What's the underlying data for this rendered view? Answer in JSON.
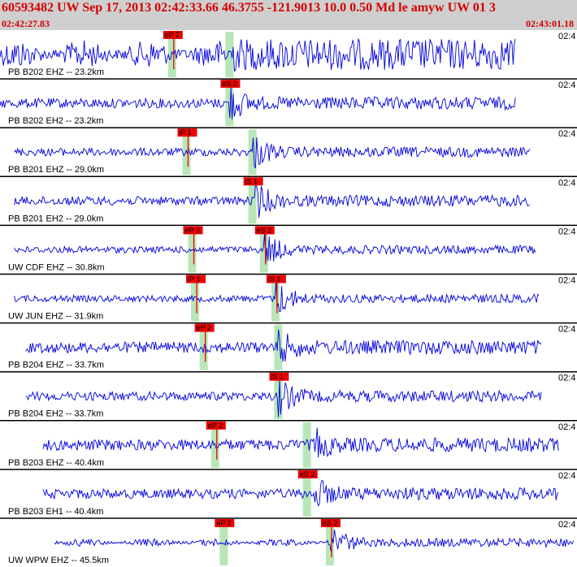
{
  "header": {
    "title": "60593482 UW Sep 17, 2013 02:42:33.66    46.3755 -121.9013 10.0 0.50 Md le amyw UW 01    3",
    "start_time": "02:42:27.83",
    "end_time": "02:43:01.18",
    "text_color": "#d40000",
    "background": "#cfcfcf"
  },
  "colors": {
    "trace": "#0000dd",
    "pick_flag": "#ee0000",
    "pick_window": "#b8e6b8",
    "separator": "#000000"
  },
  "tick_label": "02:4",
  "traces": [
    {
      "label": "PB B202 EHZ -- 23.2km",
      "start": 0.0,
      "end": 0.9,
      "amp": 0.55,
      "onset": 0.4,
      "shape": "pre",
      "picks": [
        {
          "text": "eP 2",
          "pos": 0.3,
          "window": true,
          "line": true
        },
        {
          "text": "",
          "pos": 0.4,
          "window": true,
          "line": false
        }
      ]
    },
    {
      "label": "PB B202 EH2 -- 23.2km",
      "start": 0.0,
      "end": 0.9,
      "amp": 0.22,
      "onset": 0.4,
      "shape": "burst",
      "picks": [
        {
          "text": "eS 2",
          "pos": 0.4,
          "window": true,
          "line": false
        }
      ]
    },
    {
      "label": "PB B201 EHZ -- 29.0km",
      "start": 0.025,
      "end": 0.925,
      "amp": 0.18,
      "onset": 0.44,
      "shape": "burst",
      "picks": [
        {
          "text": "iP 1",
          "pos": 0.325,
          "window": true,
          "line": true
        },
        {
          "text": "",
          "pos": 0.44,
          "window": true,
          "line": false
        }
      ]
    },
    {
      "label": "PB B201 EH2 -- 29.0km",
      "start": 0.025,
      "end": 0.925,
      "amp": 0.2,
      "onset": 0.445,
      "shape": "burst",
      "picks": [
        {
          "text": "iS 1",
          "pos": 0.44,
          "window": true,
          "line": false
        }
      ]
    },
    {
      "label": "UW CDF EHZ -- 30.8km",
      "start": 0.025,
      "end": 0.935,
      "amp": 0.15,
      "onset": 0.46,
      "shape": "burst",
      "picks": [
        {
          "text": "eP 2",
          "pos": 0.335,
          "window": true,
          "line": true
        },
        {
          "text": "eS 2",
          "pos": 0.46,
          "window": true,
          "line": true
        }
      ]
    },
    {
      "label": "UW JUN EHZ -- 31.9km",
      "start": 0.025,
      "end": 0.94,
      "amp": 0.15,
      "onset": 0.48,
      "shape": "burst",
      "picks": [
        {
          "text": "iP 1",
          "pos": 0.34,
          "window": true,
          "line": true
        },
        {
          "text": "iS 1",
          "pos": 0.48,
          "window": true,
          "line": true
        }
      ]
    },
    {
      "label": "PB B204 EHZ -- 33.7km",
      "start": 0.045,
      "end": 0.945,
      "amp": 0.25,
      "onset": 0.485,
      "shape": "burst",
      "picks": [
        {
          "text": "eP 2",
          "pos": 0.355,
          "window": true,
          "line": true
        },
        {
          "text": "",
          "pos": 0.485,
          "window": true,
          "line": false
        }
      ]
    },
    {
      "label": "PB B204 EH2 -- 33.7km",
      "start": 0.045,
      "end": 0.945,
      "amp": 0.2,
      "onset": 0.485,
      "shape": "burst",
      "picks": [
        {
          "text": "iS 1",
          "pos": 0.485,
          "window": true,
          "line": false
        }
      ]
    },
    {
      "label": "PB B203 EHZ -- 40.4km",
      "start": 0.075,
      "end": 0.975,
      "amp": 0.25,
      "onset": 0.545,
      "shape": "burst",
      "picks": [
        {
          "text": "eP 2",
          "pos": 0.375,
          "window": true,
          "line": true
        },
        {
          "text": "",
          "pos": 0.535,
          "window": true,
          "line": false
        }
      ]
    },
    {
      "label": "PB B203 EH1 -- 40.4km",
      "start": 0.075,
      "end": 0.975,
      "amp": 0.22,
      "onset": 0.545,
      "shape": "burst",
      "picks": [
        {
          "text": "eS 2",
          "pos": 0.535,
          "window": true,
          "line": false
        }
      ]
    },
    {
      "label": "UW WPW EHZ -- 45.5km",
      "start": 0.095,
      "end": 1.0,
      "amp": 0.15,
      "onset": 0.575,
      "shape": "pre",
      "picks": [
        {
          "text": "eP 2",
          "pos": 0.39,
          "window": true,
          "line": false
        },
        {
          "text": "eS 2",
          "pos": 0.575,
          "window": true,
          "line": true
        }
      ]
    }
  ]
}
